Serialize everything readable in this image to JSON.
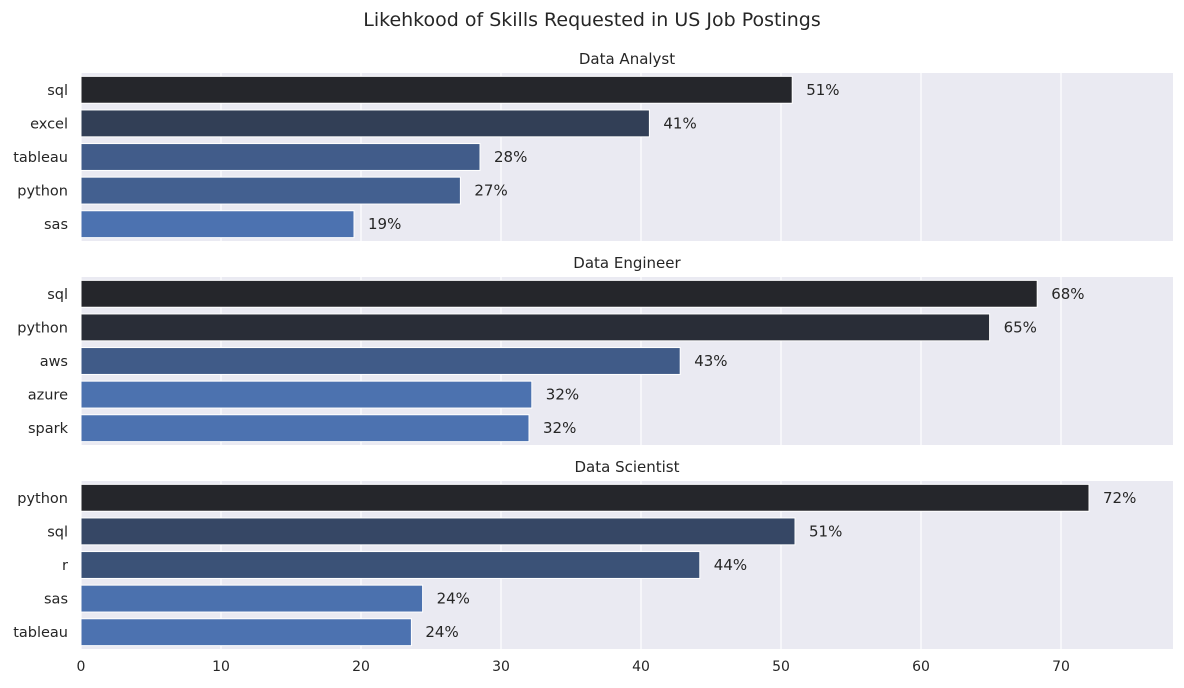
{
  "figure": {
    "title": "Likehkood of Skills Requested in US Job Postings",
    "palette_dark_to_light": [
      "#25262b",
      "#4c72b0"
    ]
  },
  "chart_data": [
    {
      "type": "bar",
      "orientation": "horizontal",
      "title": "Data Analyst",
      "categories": [
        "sql",
        "excel",
        "tableau",
        "python",
        "sas"
      ],
      "values": [
        50.8,
        40.6,
        28.5,
        27.1,
        19.5
      ],
      "value_labels": [
        "51%",
        "41%",
        "28%",
        "27%",
        "19%"
      ],
      "xlim": [
        0,
        78
      ],
      "xlabel": "",
      "ylabel": "",
      "grid": true,
      "show_xticks": false
    },
    {
      "type": "bar",
      "orientation": "horizontal",
      "title": "Data Engineer",
      "categories": [
        "sql",
        "python",
        "aws",
        "azure",
        "spark"
      ],
      "values": [
        68.3,
        64.9,
        42.8,
        32.2,
        32.0
      ],
      "value_labels": [
        "68%",
        "65%",
        "43%",
        "32%",
        "32%"
      ],
      "xlim": [
        0,
        78
      ],
      "xlabel": "",
      "ylabel": "",
      "grid": true,
      "show_xticks": false
    },
    {
      "type": "bar",
      "orientation": "horizontal",
      "title": "Data Scientist",
      "categories": [
        "python",
        "sql",
        "r",
        "sas",
        "tableau"
      ],
      "values": [
        72.0,
        51.0,
        44.2,
        24.4,
        23.6
      ],
      "value_labels": [
        "72%",
        "51%",
        "44%",
        "24%",
        "24%"
      ],
      "xlim": [
        0,
        78
      ],
      "xticks": [
        0,
        10,
        20,
        30,
        40,
        50,
        60,
        70
      ],
      "xlabel": "",
      "ylabel": "",
      "grid": true,
      "show_xticks": true
    }
  ]
}
